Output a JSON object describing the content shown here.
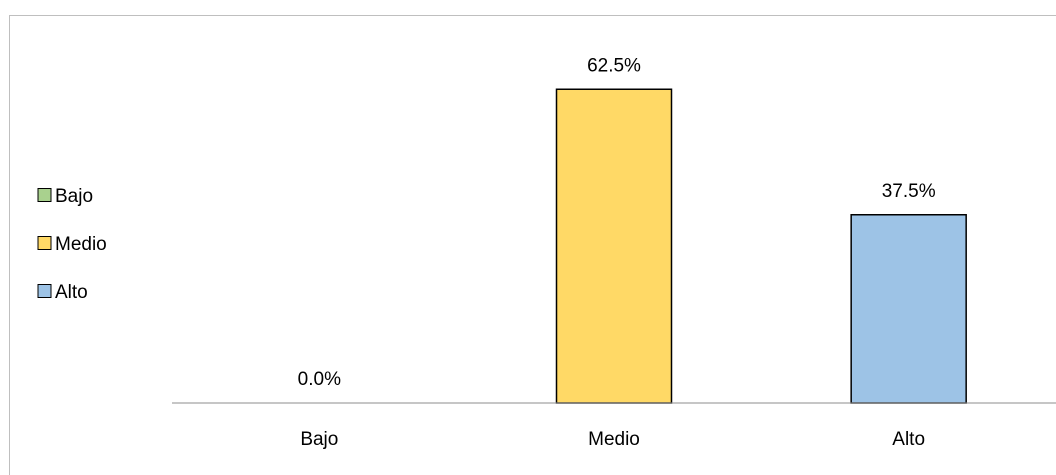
{
  "chart_data": {
    "type": "bar",
    "categories": [
      "Bajo",
      "Medio",
      "Alto"
    ],
    "values": [
      0.0,
      62.5,
      37.5
    ],
    "data_labels": [
      "0.0%",
      "62.5%",
      "37.5%"
    ],
    "colors": [
      "#a9d18e",
      "#ffd966",
      "#9dc3e6"
    ],
    "legend": {
      "position": "left",
      "entries": [
        {
          "label": "Bajo",
          "color": "#a9d18e"
        },
        {
          "label": "Medio",
          "color": "#ffd966"
        },
        {
          "label": "Alto",
          "color": "#9dc3e6"
        }
      ]
    },
    "ylim": [
      0,
      70
    ],
    "unit": "%",
    "grid": false
  }
}
